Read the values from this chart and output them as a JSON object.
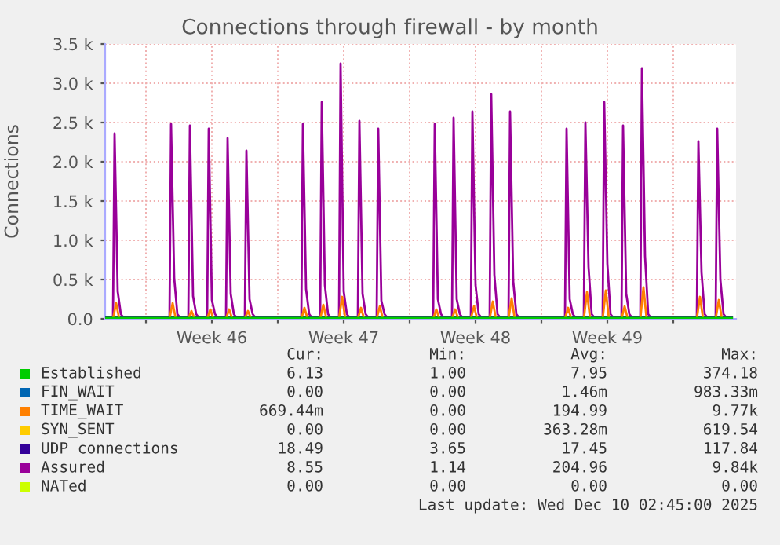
{
  "chart_data": {
    "type": "line",
    "title": "Connections through firewall - by month",
    "ylabel": "Connections",
    "xlim": [
      "2025-11-06T20:00",
      "2025-12-10T08:00"
    ],
    "xticks": [
      {
        "value": "2025-11-09T00:00",
        "label": null
      },
      {
        "value": "2025-11-12T12:00",
        "label": "Week 46"
      },
      {
        "value": "2025-11-16T00:00",
        "label": null
      },
      {
        "value": "2025-11-19T12:00",
        "label": "Week 47"
      },
      {
        "value": "2025-11-23T00:00",
        "label": null
      },
      {
        "value": "2025-11-26T12:00",
        "label": "Week 48"
      },
      {
        "value": "2025-11-30T00:00",
        "label": null
      },
      {
        "value": "2025-12-03T12:00",
        "label": "Week 49"
      },
      {
        "value": "2025-12-07T00:00",
        "label": null
      }
    ],
    "ylim": [
      0,
      3500
    ],
    "yticks": [
      {
        "value": 0,
        "label": "0.0"
      },
      {
        "value": 500,
        "label": "0.5 k"
      },
      {
        "value": 1000,
        "label": "1.0 k"
      },
      {
        "value": 1500,
        "label": "1.5 k"
      },
      {
        "value": 2000,
        "label": "2.0 k"
      },
      {
        "value": 2500,
        "label": "2.5 k"
      },
      {
        "value": 3000,
        "label": "3.0 k"
      },
      {
        "value": 3500,
        "label": "3.5 k"
      }
    ],
    "grid": true,
    "legend": "bottom",
    "marker": "none",
    "line_style": "solid",
    "series": [
      {
        "name": "Established",
        "color": "#00cc00",
        "x": [
          "2025-11-06T20:00",
          "2025-12-10T02:45"
        ],
        "values": [
          10,
          10
        ]
      },
      {
        "name": "FIN_WAIT",
        "color": "#0066b3"
      },
      {
        "name": "TIME_WAIT",
        "color": "#ff8000",
        "x": [
          "2025-11-07T06:00",
          "2025-11-07T10:00",
          "2025-11-07T14:00",
          "2025-11-10T06:00",
          "2025-11-10T10:00",
          "2025-11-10T14:00",
          "2025-11-11T06:00",
          "2025-11-11T10:00",
          "2025-11-11T14:00",
          "2025-11-12T06:00",
          "2025-11-12T10:00",
          "2025-11-12T14:00",
          "2025-11-13T06:00",
          "2025-11-13T10:00",
          "2025-11-13T14:00",
          "2025-11-14T06:00",
          "2025-11-14T10:00",
          "2025-11-14T14:00",
          "2025-11-17T06:00",
          "2025-11-17T10:00",
          "2025-11-17T14:00",
          "2025-11-18T06:00",
          "2025-11-18T10:00",
          "2025-11-18T14:00",
          "2025-11-19T06:00",
          "2025-11-19T10:00",
          "2025-11-19T14:00",
          "2025-11-20T06:00",
          "2025-11-20T10:00",
          "2025-11-20T14:00",
          "2025-11-21T06:00",
          "2025-11-21T10:00",
          "2025-11-21T14:00",
          "2025-11-24T06:00",
          "2025-11-24T10:00",
          "2025-11-24T14:00",
          "2025-11-25T06:00",
          "2025-11-25T10:00",
          "2025-11-25T14:00",
          "2025-11-26T06:00",
          "2025-11-26T10:00",
          "2025-11-26T14:00",
          "2025-11-27T06:00",
          "2025-11-27T10:00",
          "2025-11-27T14:00",
          "2025-11-28T06:00",
          "2025-11-28T10:00",
          "2025-11-28T14:00",
          "2025-12-01T06:00",
          "2025-12-01T10:00",
          "2025-12-01T14:00",
          "2025-12-02T06:00",
          "2025-12-02T10:00",
          "2025-12-02T14:00",
          "2025-12-03T06:00",
          "2025-12-03T10:00",
          "2025-12-03T14:00",
          "2025-12-04T06:00",
          "2025-12-04T10:00",
          "2025-12-04T14:00",
          "2025-12-05T06:00",
          "2025-12-05T10:00",
          "2025-12-05T14:00",
          "2025-12-08T06:00",
          "2025-12-08T10:00",
          "2025-12-08T14:00",
          "2025-12-09T06:00",
          "2025-12-09T10:00",
          "2025-12-09T14:00"
        ],
        "values": [
          0,
          200,
          0,
          0,
          200,
          0,
          0,
          100,
          0,
          0,
          120,
          0,
          0,
          120,
          0,
          0,
          100,
          0,
          0,
          140,
          0,
          0,
          180,
          0,
          0,
          280,
          0,
          0,
          140,
          0,
          0,
          160,
          0,
          0,
          120,
          0,
          0,
          120,
          0,
          0,
          160,
          0,
          0,
          220,
          0,
          0,
          260,
          0,
          0,
          140,
          0,
          0,
          340,
          0,
          0,
          360,
          0,
          0,
          160,
          0,
          0,
          400,
          0,
          0,
          280,
          0,
          0,
          240,
          0
        ]
      },
      {
        "name": "SYN_SENT",
        "color": "#ffcc00"
      },
      {
        "name": "UDP connections",
        "color": "#330099",
        "x": [
          "2025-11-06T20:00",
          "2025-12-10T02:45"
        ],
        "values": [
          20,
          20
        ]
      },
      {
        "name": "Assured",
        "color": "#990099",
        "x": [
          "2025-11-07T06:00",
          "2025-11-07T08:00",
          "2025-11-07T12:00",
          "2025-11-07T16:00",
          "2025-11-07T20:00",
          "2025-11-10T06:00",
          "2025-11-10T08:00",
          "2025-11-10T12:00",
          "2025-11-10T16:00",
          "2025-11-10T20:00",
          "2025-11-11T06:00",
          "2025-11-11T08:00",
          "2025-11-11T12:00",
          "2025-11-11T16:00",
          "2025-11-11T20:00",
          "2025-11-12T06:00",
          "2025-11-12T08:00",
          "2025-11-12T12:00",
          "2025-11-12T16:00",
          "2025-11-12T20:00",
          "2025-11-13T06:00",
          "2025-11-13T08:00",
          "2025-11-13T12:00",
          "2025-11-13T16:00",
          "2025-11-13T20:00",
          "2025-11-14T06:00",
          "2025-11-14T08:00",
          "2025-11-14T12:00",
          "2025-11-14T16:00",
          "2025-11-14T20:00",
          "2025-11-17T06:00",
          "2025-11-17T08:00",
          "2025-11-17T12:00",
          "2025-11-17T16:00",
          "2025-11-17T20:00",
          "2025-11-18T06:00",
          "2025-11-18T08:00",
          "2025-11-18T12:00",
          "2025-11-18T16:00",
          "2025-11-18T20:00",
          "2025-11-19T06:00",
          "2025-11-19T08:00",
          "2025-11-19T12:00",
          "2025-11-19T16:00",
          "2025-11-19T20:00",
          "2025-11-20T06:00",
          "2025-11-20T08:00",
          "2025-11-20T12:00",
          "2025-11-20T16:00",
          "2025-11-20T20:00",
          "2025-11-21T06:00",
          "2025-11-21T08:00",
          "2025-11-21T12:00",
          "2025-11-21T16:00",
          "2025-11-21T20:00",
          "2025-11-24T06:00",
          "2025-11-24T08:00",
          "2025-11-24T12:00",
          "2025-11-24T16:00",
          "2025-11-24T20:00",
          "2025-11-25T06:00",
          "2025-11-25T08:00",
          "2025-11-25T12:00",
          "2025-11-25T16:00",
          "2025-11-25T20:00",
          "2025-11-26T06:00",
          "2025-11-26T08:00",
          "2025-11-26T12:00",
          "2025-11-26T16:00",
          "2025-11-26T20:00",
          "2025-11-27T06:00",
          "2025-11-27T08:00",
          "2025-11-27T12:00",
          "2025-11-27T16:00",
          "2025-11-27T20:00",
          "2025-11-28T06:00",
          "2025-11-28T08:00",
          "2025-11-28T12:00",
          "2025-11-28T16:00",
          "2025-11-28T20:00",
          "2025-12-01T06:00",
          "2025-12-01T08:00",
          "2025-12-01T12:00",
          "2025-12-01T16:00",
          "2025-12-01T20:00",
          "2025-12-02T06:00",
          "2025-12-02T08:00",
          "2025-12-02T12:00",
          "2025-12-02T16:00",
          "2025-12-02T20:00",
          "2025-12-03T06:00",
          "2025-12-03T08:00",
          "2025-12-03T12:00",
          "2025-12-03T16:00",
          "2025-12-03T20:00",
          "2025-12-04T06:00",
          "2025-12-04T08:00",
          "2025-12-04T12:00",
          "2025-12-04T16:00",
          "2025-12-04T20:00",
          "2025-12-05T06:00",
          "2025-12-05T08:00",
          "2025-12-05T12:00",
          "2025-12-05T16:00",
          "2025-12-05T20:00",
          "2025-12-08T06:00",
          "2025-12-08T08:00",
          "2025-12-08T12:00",
          "2025-12-08T16:00",
          "2025-12-08T20:00",
          "2025-12-09T06:00",
          "2025-12-09T08:00",
          "2025-12-09T12:00",
          "2025-12-09T16:00",
          "2025-12-09T20:00"
        ],
        "values": [
          10,
          2360,
          350,
          60,
          10,
          10,
          2480,
          520,
          60,
          10,
          10,
          2460,
          290,
          60,
          10,
          10,
          2420,
          240,
          60,
          10,
          10,
          2300,
          320,
          60,
          10,
          10,
          2140,
          250,
          60,
          10,
          10,
          2480,
          380,
          60,
          10,
          10,
          2760,
          430,
          60,
          10,
          10,
          3250,
          350,
          60,
          10,
          10,
          2520,
          320,
          60,
          10,
          10,
          2420,
          230,
          60,
          10,
          10,
          2480,
          250,
          60,
          10,
          10,
          2560,
          250,
          60,
          10,
          10,
          2640,
          430,
          60,
          10,
          10,
          2860,
          560,
          60,
          10,
          10,
          2640,
          480,
          60,
          10,
          10,
          2420,
          250,
          60,
          10,
          10,
          2500,
          660,
          60,
          10,
          10,
          2760,
          700,
          60,
          10,
          10,
          2460,
          320,
          60,
          10,
          10,
          3190,
          800,
          60,
          10,
          10,
          2260,
          590,
          60,
          10,
          10,
          2420,
          500,
          60,
          10
        ]
      },
      {
        "name": "NATed",
        "color": "#ccff00"
      }
    ],
    "annotations": [
      "Cur:",
      "Min:",
      "Avg:",
      "Max:",
      "6.13",
      "1.00",
      "7.95",
      "374.18",
      "0.00",
      "0.00",
      "1.46m",
      "983.33m",
      "669.44m",
      "0.00",
      "194.99",
      "9.77k",
      "0.00",
      "0.00",
      "363.28m",
      "619.54",
      "18.49",
      "3.65",
      "17.45",
      "117.84",
      "8.55",
      "1.14",
      "204.96",
      "9.84k",
      "0.00",
      "0.00",
      "0.00",
      "0.00",
      "Last update: Wed Dec 10 02:45:00 2025"
    ]
  }
}
